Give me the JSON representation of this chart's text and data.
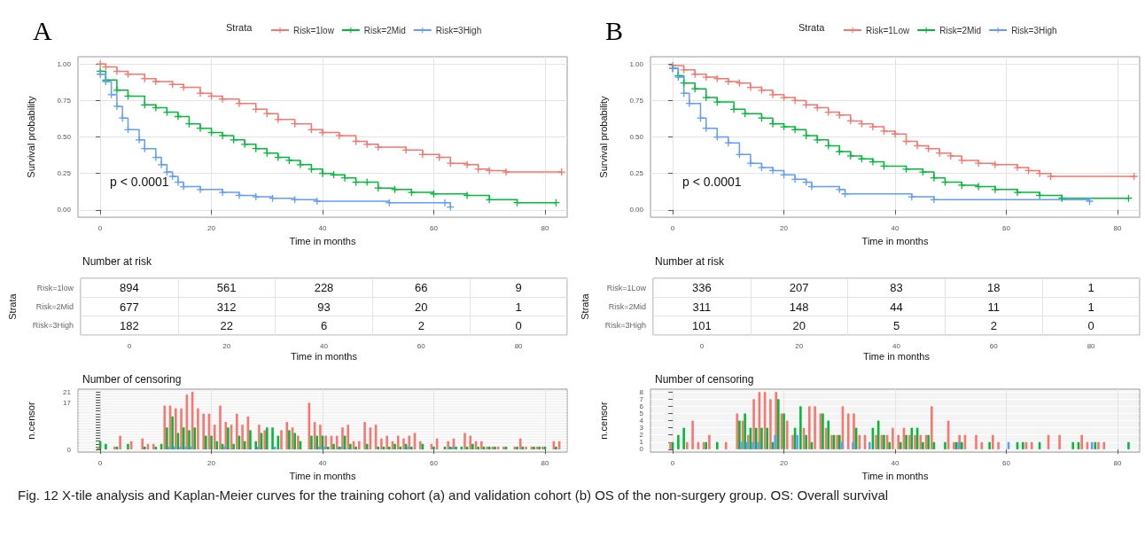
{
  "chart_data": [
    {
      "type": "step",
      "title": "A",
      "xlabel": "Time in months",
      "ylabel": "Survival probability",
      "legend_title": "Strata",
      "legend": "top",
      "grid": true,
      "marker": "cross",
      "xlim": [
        -4,
        84
      ],
      "xticks": [
        0,
        20,
        40,
        60,
        80
      ],
      "ylim": [
        -0.05,
        1.05
      ],
      "yticks": [
        {
          "value": 0,
          "label": "0.00"
        },
        {
          "value": 0.25,
          "label": "0.25"
        },
        {
          "value": 0.5,
          "label": "0.50"
        },
        {
          "value": 0.75,
          "label": "0.75"
        },
        {
          "value": 1,
          "label": "1.00"
        }
      ],
      "annotations": [
        "p < 0.0001",
        "Fig. 12 X-tile analysis and Kaplan-Meier curves for the training cohort (a) and validation cohort (b) OS of the non-surgery group. OS: Overall survival"
      ],
      "series": [
        {
          "name": "Risk=1low",
          "color": "#f8766d",
          "x": [
            0,
            1,
            3,
            5,
            8,
            10,
            13,
            15,
            18,
            20,
            22,
            25,
            28,
            30,
            32,
            35,
            38,
            40,
            43,
            46,
            48,
            50,
            55,
            58,
            61,
            63,
            66,
            68,
            70,
            73,
            83
          ],
          "values": [
            1.0,
            0.98,
            0.95,
            0.93,
            0.9,
            0.88,
            0.86,
            0.84,
            0.8,
            0.78,
            0.76,
            0.73,
            0.69,
            0.66,
            0.62,
            0.59,
            0.55,
            0.53,
            0.51,
            0.47,
            0.45,
            0.43,
            0.41,
            0.38,
            0.36,
            0.32,
            0.31,
            0.28,
            0.27,
            0.26,
            0.26
          ]
        },
        {
          "name": "Risk=2Mid",
          "color": "#00ba38",
          "x": [
            0,
            1,
            3,
            5,
            8,
            10,
            12,
            14,
            16,
            18,
            20,
            22,
            24,
            26,
            28,
            30,
            32,
            34,
            36,
            38,
            40,
            42,
            44,
            46,
            48,
            50,
            53,
            56,
            60,
            66,
            70,
            75,
            82
          ],
          "values": [
            0.95,
            0.89,
            0.82,
            0.78,
            0.72,
            0.7,
            0.67,
            0.64,
            0.59,
            0.56,
            0.53,
            0.51,
            0.48,
            0.45,
            0.42,
            0.39,
            0.36,
            0.34,
            0.31,
            0.28,
            0.25,
            0.24,
            0.22,
            0.19,
            0.19,
            0.15,
            0.14,
            0.12,
            0.11,
            0.1,
            0.07,
            0.05,
            0.05
          ]
        },
        {
          "name": "Risk=3High",
          "color": "#619cff",
          "x": [
            0,
            1,
            2,
            3,
            4,
            5,
            7,
            8,
            10,
            11,
            12,
            13,
            14,
            15,
            18,
            22,
            25,
            28,
            31,
            35,
            39,
            52,
            62,
            63
          ],
          "values": [
            0.93,
            0.88,
            0.79,
            0.71,
            0.63,
            0.55,
            0.48,
            0.42,
            0.36,
            0.31,
            0.26,
            0.23,
            0.19,
            0.16,
            0.14,
            0.12,
            0.1,
            0.09,
            0.08,
            0.07,
            0.06,
            0.05,
            0.05,
            0.02
          ]
        }
      ]
    },
    {
      "type": "heatmap",
      "title": "Number at risk",
      "xlabel": "Time in months",
      "ylabel": "Strata",
      "data_labels": true,
      "grid": true,
      "categories": [
        "0",
        "20",
        "40",
        "60",
        "80"
      ],
      "y_categories": [
        "Risk=1low",
        "Risk=2Mid",
        "Risk=3High"
      ],
      "cells": [
        [
          894,
          561,
          228,
          66,
          9
        ],
        [
          677,
          312,
          93,
          20,
          1
        ],
        [
          182,
          22,
          6,
          2,
          0
        ]
      ]
    },
    {
      "type": "bar",
      "title": "Number of censoring",
      "xlabel": "Time in months",
      "ylabel": "n.censor",
      "grid": true,
      "xlim": [
        -4,
        84
      ],
      "xticks": [
        0,
        20,
        40,
        60,
        80
      ],
      "ylim": [
        -1,
        22
      ],
      "yticks": [
        0,
        {
          "value": 1,
          "label": null
        },
        {
          "value": 2,
          "label": null
        },
        {
          "value": 3,
          "label": null
        },
        {
          "value": 4,
          "label": null
        },
        {
          "value": 5,
          "label": null
        },
        {
          "value": 6,
          "label": null
        },
        {
          "value": 7,
          "label": null
        },
        {
          "value": 8,
          "label": null
        },
        {
          "value": 9,
          "label": null
        },
        {
          "value": 10,
          "label": null
        },
        {
          "value": 11,
          "label": null
        },
        {
          "value": 12,
          "label": null
        },
        {
          "value": 13,
          "label": null
        },
        {
          "value": 14,
          "label": null
        },
        {
          "value": 15,
          "label": null
        },
        {
          "value": 16,
          "label": null
        },
        17,
        {
          "value": 18,
          "label": null
        },
        {
          "value": 19,
          "label": null
        },
        {
          "value": 20,
          "label": null
        },
        21
      ],
      "series": [
        {
          "color": "#f8766d",
          "x": [
            0,
            3,
            4,
            6,
            8,
            9,
            10,
            12,
            13,
            14,
            15,
            16,
            17,
            18,
            19,
            20,
            21,
            22,
            23,
            24,
            25,
            26,
            27,
            29,
            30,
            33,
            34,
            35,
            36,
            38,
            39,
            40,
            41,
            42,
            43,
            44,
            45,
            46,
            47,
            48,
            49,
            50,
            51,
            52,
            53,
            54,
            55,
            56,
            57,
            58,
            60,
            61,
            63,
            64,
            66,
            67,
            68,
            69,
            70,
            71,
            72,
            73,
            75,
            76,
            77,
            78,
            79,
            80,
            82,
            83
          ],
          "values": [
            1,
            1,
            5,
            3,
            4,
            2,
            2,
            16,
            16,
            15,
            15,
            20,
            21,
            15,
            13,
            13,
            9,
            16,
            10,
            9,
            13,
            9,
            12,
            9,
            7,
            7,
            10,
            8,
            5,
            17,
            10,
            9,
            5,
            5,
            5,
            8,
            9,
            3,
            3,
            10,
            8,
            9,
            4,
            5,
            3,
            5,
            4,
            5,
            6,
            3,
            2,
            4,
            3,
            4,
            6,
            5,
            3,
            3,
            1,
            1,
            1,
            1,
            1,
            4,
            1,
            1,
            1,
            1,
            3,
            3
          ]
        },
        {
          "color": "#00ba38",
          "x": [
            0,
            1,
            3,
            5,
            8,
            10,
            11,
            12,
            13,
            14,
            15,
            16,
            17,
            19,
            20,
            21,
            22,
            23,
            24,
            25,
            26,
            27,
            28,
            29,
            30,
            31,
            32,
            34,
            35,
            36,
            38,
            39,
            40,
            41,
            42,
            43,
            44,
            45,
            46,
            48,
            50,
            51,
            52,
            53,
            54,
            55,
            56,
            58,
            60,
            62,
            63,
            64,
            65,
            66,
            67,
            68,
            69,
            70,
            71,
            73,
            75,
            76,
            78,
            79,
            80,
            82
          ],
          "values": [
            3,
            2,
            1,
            2,
            1,
            1,
            2,
            8,
            12,
            6,
            8,
            7,
            8,
            5,
            5,
            3,
            2,
            8,
            2,
            5,
            3,
            7,
            3,
            6,
            8,
            8,
            5,
            7,
            6,
            3,
            5,
            5,
            5,
            1,
            2,
            1,
            5,
            2,
            1,
            2,
            1,
            1,
            1,
            2,
            1,
            2,
            1,
            2,
            1,
            1,
            1,
            1,
            1,
            1,
            2,
            1,
            1,
            1,
            1,
            1,
            1,
            1,
            1,
            1,
            1,
            1
          ]
        },
        {
          "color": "#619cff",
          "x": [
            12,
            13,
            14,
            15,
            16,
            22,
            28,
            31,
            39,
            40,
            43,
            55,
            63
          ],
          "values": [
            1,
            1,
            1,
            1,
            1,
            1,
            1,
            1,
            1,
            1,
            1,
            1,
            1
          ]
        }
      ]
    },
    {
      "type": "step",
      "title": "B",
      "xlabel": "Time in months",
      "ylabel": "Survival probability",
      "legend_title": "Strata",
      "legend": "top",
      "grid": true,
      "marker": "cross",
      "xlim": [
        -4,
        84
      ],
      "xticks": [
        0,
        20,
        40,
        60,
        80
      ],
      "ylim": [
        -0.05,
        1.05
      ],
      "yticks": [
        {
          "value": 0,
          "label": "0.00"
        },
        {
          "value": 0.25,
          "label": "0.25"
        },
        {
          "value": 0.5,
          "label": "0.50"
        },
        {
          "value": 0.75,
          "label": "0.75"
        },
        {
          "value": 1,
          "label": "1.00"
        }
      ],
      "annotations": [
        "p < 0.0001"
      ],
      "series": [
        {
          "name": "Risk=1Low",
          "color": "#f8766d",
          "x": [
            0,
            2,
            4,
            6,
            8,
            10,
            12,
            14,
            16,
            18,
            20,
            22,
            24,
            26,
            28,
            30,
            32,
            34,
            36,
            38,
            40,
            42,
            44,
            46,
            48,
            50,
            52,
            55,
            58,
            62,
            64,
            66,
            68,
            83
          ],
          "values": [
            0.99,
            0.96,
            0.93,
            0.91,
            0.9,
            0.88,
            0.87,
            0.84,
            0.82,
            0.79,
            0.77,
            0.75,
            0.72,
            0.7,
            0.67,
            0.65,
            0.61,
            0.59,
            0.57,
            0.54,
            0.52,
            0.47,
            0.44,
            0.42,
            0.39,
            0.37,
            0.34,
            0.32,
            0.31,
            0.29,
            0.27,
            0.25,
            0.23,
            0.23
          ]
        },
        {
          "name": "Risk=2Mid",
          "color": "#00ba38",
          "x": [
            0,
            1,
            2,
            4,
            6,
            8,
            11,
            13,
            16,
            18,
            20,
            22,
            24,
            26,
            28,
            30,
            32,
            34,
            36,
            38,
            42,
            45,
            47,
            49,
            52,
            55,
            58,
            62,
            66,
            70,
            82
          ],
          "values": [
            0.97,
            0.92,
            0.87,
            0.83,
            0.77,
            0.74,
            0.69,
            0.66,
            0.63,
            0.59,
            0.57,
            0.55,
            0.51,
            0.48,
            0.44,
            0.4,
            0.37,
            0.35,
            0.33,
            0.3,
            0.28,
            0.26,
            0.22,
            0.19,
            0.17,
            0.16,
            0.14,
            0.12,
            0.1,
            0.08,
            0.08
          ]
        },
        {
          "name": "Risk=3High",
          "color": "#619cff",
          "x": [
            0,
            1,
            2,
            3,
            5,
            6,
            8,
            10,
            12,
            14,
            16,
            18,
            20,
            22,
            24,
            25,
            30,
            31,
            43,
            47,
            75
          ],
          "values": [
            0.97,
            0.91,
            0.8,
            0.73,
            0.63,
            0.56,
            0.5,
            0.46,
            0.38,
            0.32,
            0.29,
            0.27,
            0.24,
            0.21,
            0.19,
            0.16,
            0.14,
            0.11,
            0.09,
            0.07,
            0.06
          ]
        }
      ]
    },
    {
      "type": "heatmap",
      "title": "Number at risk",
      "xlabel": "Time in months",
      "ylabel": "Strata",
      "data_labels": true,
      "grid": true,
      "categories": [
        "0",
        "20",
        "40",
        "60",
        "80"
      ],
      "y_categories": [
        "Risk=1Low",
        "Risk=2Mid",
        "Risk=3High"
      ],
      "cells": [
        [
          336,
          207,
          83,
          18,
          1
        ],
        [
          311,
          148,
          44,
          11,
          1
        ],
        [
          101,
          20,
          5,
          2,
          0
        ]
      ]
    },
    {
      "type": "bar",
      "title": "Number of censoring",
      "xlabel": "Time in months",
      "ylabel": "n.censor",
      "grid": true,
      "xlim": [
        -4,
        84
      ],
      "xticks": [
        0,
        20,
        40,
        60,
        80
      ],
      "ylim": [
        -0.4,
        8.4
      ],
      "yticks": [
        0,
        1,
        2,
        3,
        4,
        5,
        6,
        7,
        8
      ],
      "series": [
        {
          "color": "#f8766d",
          "x": [
            0,
            3,
            4,
            5,
            6,
            7,
            10,
            12,
            13,
            14,
            15,
            16,
            17,
            18,
            19,
            20,
            21,
            22,
            24,
            25,
            26,
            27,
            28,
            29,
            30,
            31,
            32,
            33,
            34,
            35,
            37,
            38,
            39,
            40,
            41,
            42,
            43,
            44,
            45,
            46,
            47,
            50,
            51,
            52,
            53,
            55,
            56,
            58,
            59,
            64,
            65,
            68,
            70,
            74,
            75,
            77,
            78
          ],
          "values": [
            1,
            1,
            4,
            1,
            1,
            2,
            1,
            5,
            4,
            2,
            7,
            8,
            8,
            7,
            8,
            5,
            4,
            2,
            3,
            6,
            6,
            5,
            3,
            2,
            2,
            6,
            5,
            5,
            2,
            2,
            2,
            2,
            2,
            3,
            2,
            3,
            2,
            2,
            2,
            2,
            6,
            4,
            1,
            2,
            2,
            2,
            1,
            2,
            1,
            1,
            1,
            2,
            2,
            2,
            1,
            1,
            1
          ]
        },
        {
          "color": "#00ba38",
          "x": [
            0,
            1,
            2,
            6,
            8,
            12,
            13,
            14,
            15,
            16,
            17,
            18,
            19,
            20,
            22,
            23,
            24,
            25,
            27,
            28,
            29,
            30,
            33,
            36,
            37,
            38,
            39,
            41,
            42,
            43,
            44,
            45,
            46,
            47,
            49,
            51,
            52,
            57,
            62,
            63,
            66,
            72,
            73,
            76,
            82
          ],
          "values": [
            1,
            2,
            3,
            1,
            1,
            4,
            5,
            3,
            3,
            3,
            3,
            1,
            7,
            5,
            3,
            6,
            2,
            1,
            5,
            4,
            2,
            2,
            3,
            3,
            4,
            2,
            1,
            1,
            2,
            3,
            3,
            1,
            2,
            1,
            1,
            1,
            1,
            1,
            1,
            1,
            1,
            1,
            1,
            1,
            1
          ]
        },
        {
          "color": "#619cff",
          "x": [
            12,
            13,
            14,
            15,
            18,
            22,
            30,
            32,
            35,
            51,
            60,
            75
          ],
          "values": [
            1,
            1,
            1,
            1,
            2,
            2,
            1,
            1,
            1,
            1,
            1,
            1
          ]
        }
      ]
    }
  ]
}
